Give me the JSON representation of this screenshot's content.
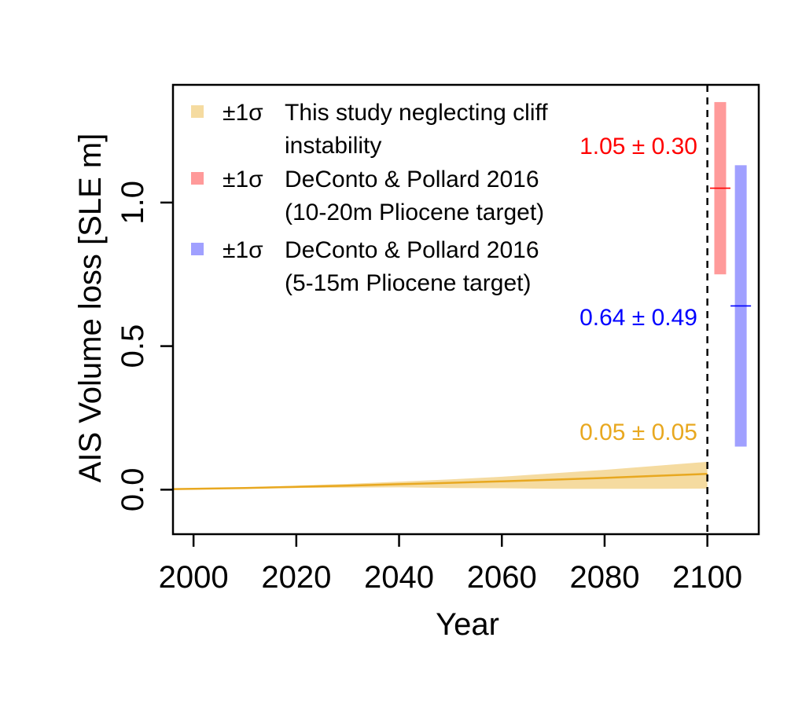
{
  "chart_data": {
    "type": "line",
    "xlabel": "Year",
    "ylabel": "AIS Volume loss [SLE m]",
    "xlim": [
      1996,
      2110
    ],
    "ylim": [
      -0.155,
      1.41
    ],
    "x_ticks": [
      2000,
      2020,
      2040,
      2060,
      2080,
      2100
    ],
    "x_tick_labels": [
      "2000",
      "2020",
      "2040",
      "2060",
      "2080",
      "2100"
    ],
    "y_ticks": [
      0.0,
      0.5,
      1.0
    ],
    "y_tick_labels": [
      "0.0",
      "0.5",
      "1.0"
    ],
    "grid": false,
    "legend_position": "top-left",
    "vline": {
      "x": 2100,
      "style": "dashed",
      "color": "#000000"
    },
    "series": [
      {
        "name": "This study neglecting cliff instability",
        "legend_symbol": "±1σ",
        "legend_lines": [
          "This study neglecting cliff",
          "instability"
        ],
        "color": "#e8a820",
        "band_color": "#f5dba0",
        "x": [
          1996,
          2000,
          2010,
          2020,
          2030,
          2040,
          2050,
          2060,
          2070,
          2080,
          2090,
          2100
        ],
        "mean": [
          0.002,
          0.003,
          0.006,
          0.01,
          0.014,
          0.019,
          0.024,
          0.029,
          0.035,
          0.041,
          0.048,
          0.055
        ],
        "lower": [
          0.001,
          0.002,
          0.004,
          0.006,
          0.007,
          0.008,
          0.006,
          0.005,
          0.003,
          0.003,
          0.003,
          0.004
        ],
        "upper": [
          0.003,
          0.004,
          0.008,
          0.014,
          0.02,
          0.028,
          0.036,
          0.045,
          0.057,
          0.069,
          0.083,
          0.097
        ]
      },
      {
        "name": "DeConto & Pollard 2016 (10-20m Pliocene target)",
        "legend_symbol": "±1σ",
        "legend_lines": [
          "DeConto & Pollard 2016",
          "(10-20m Pliocene target)"
        ],
        "color": "#ff0000",
        "band_color": "#ff9a9a",
        "type": "interval",
        "x": 2102.5,
        "mean": 1.05,
        "sd": 0.3,
        "label": "1.05 ± 0.30"
      },
      {
        "name": "DeConto & Pollard 2016 (5-15m Pliocene target)",
        "legend_symbol": "±1σ",
        "legend_lines": [
          "DeConto & Pollard 2016",
          "(5-15m Pliocene target)"
        ],
        "color": "#0000ff",
        "band_color": "#a0a0ff",
        "type": "interval",
        "x": 2106.5,
        "mean": 0.64,
        "sd": 0.49,
        "label": "0.64 ± 0.49"
      }
    ],
    "annotations": [
      {
        "text": "1.05 ± 0.30",
        "color": "#ff0000",
        "x": 2098,
        "y": 1.05
      },
      {
        "text": "0.64 ± 0.49",
        "color": "#0000ff",
        "x": 2098,
        "y": 0.45
      },
      {
        "text": "0.05 ± 0.05",
        "color": "#e8a820",
        "x": 2098,
        "y": 0.2
      }
    ]
  }
}
